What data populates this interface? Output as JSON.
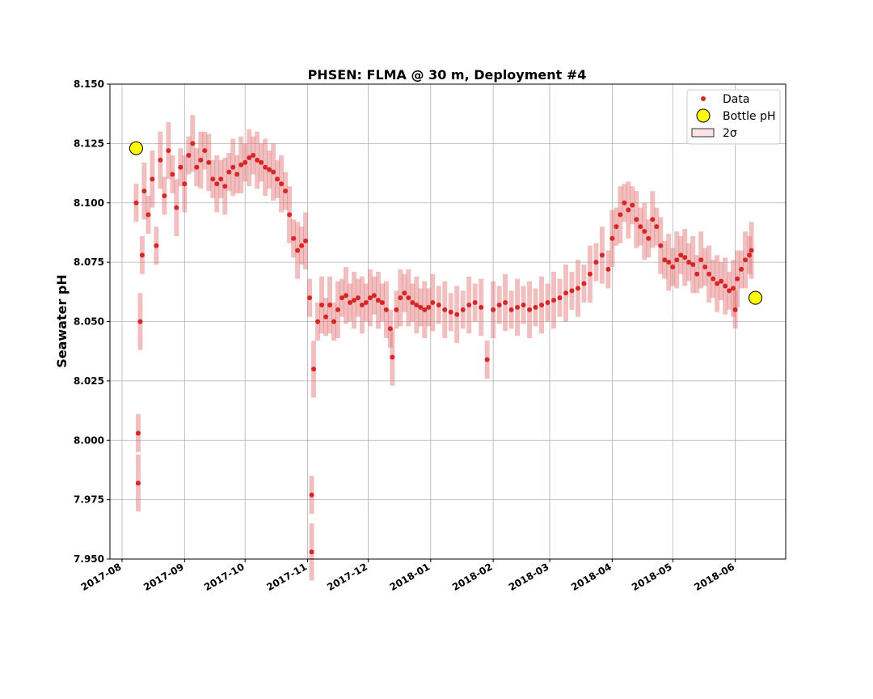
{
  "chart_data": {
    "type": "scatter",
    "title": "PHSEN: FLMA @ 30 m, Deployment #4",
    "xlabel": "",
    "ylabel": "Seawater pH",
    "xlim": [
      "2017-07-26",
      "2018-06-26"
    ],
    "ylim": [
      7.95,
      8.15
    ],
    "x_ticks": [
      "2017-08",
      "2017-09",
      "2017-10",
      "2017-11",
      "2017-12",
      "2018-01",
      "2018-02",
      "2018-03",
      "2018-04",
      "2018-05",
      "2018-06"
    ],
    "y_ticks": [
      "7.950",
      "7.975",
      "8.000",
      "8.025",
      "8.050",
      "8.075",
      "8.100",
      "8.125",
      "8.150"
    ],
    "grid": true,
    "legend_position": "top-right",
    "legend": [
      {
        "label": "Data",
        "marker": "dot",
        "color": "#d62728"
      },
      {
        "label": "Bottle pH",
        "marker": "circle",
        "color": "#ffff00"
      },
      {
        "label": "2σ",
        "marker": "patch",
        "color": "#fbe3e3"
      }
    ],
    "series": [
      {
        "name": "Data",
        "color": "#d62728",
        "band_color": "#e07070",
        "sigma2": [
          0.008,
          0.012
        ],
        "points": [
          [
            "2017-08-08",
            8.1
          ],
          [
            "2017-08-09",
            7.982
          ],
          [
            "2017-08-09",
            8.003
          ],
          [
            "2017-08-10",
            8.05
          ],
          [
            "2017-08-11",
            8.078
          ],
          [
            "2017-08-12",
            8.105
          ],
          [
            "2017-08-14",
            8.095
          ],
          [
            "2017-08-16",
            8.11
          ],
          [
            "2017-08-18",
            8.082
          ],
          [
            "2017-08-20",
            8.118
          ],
          [
            "2017-08-22",
            8.103
          ],
          [
            "2017-08-24",
            8.122
          ],
          [
            "2017-08-26",
            8.112
          ],
          [
            "2017-08-28",
            8.098
          ],
          [
            "2017-08-30",
            8.115
          ],
          [
            "2017-09-01",
            8.108
          ],
          [
            "2017-09-03",
            8.12
          ],
          [
            "2017-09-05",
            8.125
          ],
          [
            "2017-09-07",
            8.115
          ],
          [
            "2017-09-09",
            8.118
          ],
          [
            "2017-09-11",
            8.122
          ],
          [
            "2017-09-13",
            8.117
          ],
          [
            "2017-09-15",
            8.11
          ],
          [
            "2017-09-17",
            8.108
          ],
          [
            "2017-09-19",
            8.11
          ],
          [
            "2017-09-21",
            8.107
          ],
          [
            "2017-09-23",
            8.113
          ],
          [
            "2017-09-25",
            8.115
          ],
          [
            "2017-09-27",
            8.112
          ],
          [
            "2017-09-29",
            8.116
          ],
          [
            "2017-10-01",
            8.117
          ],
          [
            "2017-10-03",
            8.119
          ],
          [
            "2017-10-05",
            8.12
          ],
          [
            "2017-10-07",
            8.118
          ],
          [
            "2017-10-09",
            8.117
          ],
          [
            "2017-10-11",
            8.115
          ],
          [
            "2017-10-13",
            8.114
          ],
          [
            "2017-10-15",
            8.113
          ],
          [
            "2017-10-17",
            8.11
          ],
          [
            "2017-10-19",
            8.108
          ],
          [
            "2017-10-21",
            8.105
          ],
          [
            "2017-10-23",
            8.095
          ],
          [
            "2017-10-25",
            8.085
          ],
          [
            "2017-10-27",
            8.08
          ],
          [
            "2017-10-29",
            8.082
          ],
          [
            "2017-10-31",
            8.084
          ],
          [
            "2017-11-02",
            8.06
          ],
          [
            "2017-11-03",
            7.953
          ],
          [
            "2017-11-03",
            7.977
          ],
          [
            "2017-11-04",
            8.03
          ],
          [
            "2017-11-06",
            8.05
          ],
          [
            "2017-11-08",
            8.057
          ],
          [
            "2017-11-10",
            8.052
          ],
          [
            "2017-11-12",
            8.057
          ],
          [
            "2017-11-14",
            8.05
          ],
          [
            "2017-11-16",
            8.055
          ],
          [
            "2017-11-18",
            8.06
          ],
          [
            "2017-11-20",
            8.061
          ],
          [
            "2017-11-22",
            8.058
          ],
          [
            "2017-11-24",
            8.059
          ],
          [
            "2017-11-26",
            8.06
          ],
          [
            "2017-11-28",
            8.057
          ],
          [
            "2017-11-30",
            8.058
          ],
          [
            "2017-12-02",
            8.06
          ],
          [
            "2017-12-04",
            8.061
          ],
          [
            "2017-12-06",
            8.059
          ],
          [
            "2017-12-08",
            8.058
          ],
          [
            "2017-12-10",
            8.055
          ],
          [
            "2017-12-12",
            8.047
          ],
          [
            "2017-12-13",
            8.035
          ],
          [
            "2017-12-15",
            8.055
          ],
          [
            "2017-12-17",
            8.06
          ],
          [
            "2017-12-19",
            8.062
          ],
          [
            "2017-12-21",
            8.06
          ],
          [
            "2017-12-23",
            8.058
          ],
          [
            "2017-12-25",
            8.057
          ],
          [
            "2017-12-27",
            8.056
          ],
          [
            "2017-12-29",
            8.055
          ],
          [
            "2017-12-31",
            8.056
          ],
          [
            "2018-01-02",
            8.058
          ],
          [
            "2018-01-05",
            8.057
          ],
          [
            "2018-01-08",
            8.055
          ],
          [
            "2018-01-11",
            8.054
          ],
          [
            "2018-01-14",
            8.053
          ],
          [
            "2018-01-17",
            8.055
          ],
          [
            "2018-01-20",
            8.057
          ],
          [
            "2018-01-23",
            8.058
          ],
          [
            "2018-01-26",
            8.056
          ],
          [
            "2018-01-29",
            8.034
          ],
          [
            "2018-02-01",
            8.055
          ],
          [
            "2018-02-04",
            8.057
          ],
          [
            "2018-02-07",
            8.058
          ],
          [
            "2018-02-10",
            8.055
          ],
          [
            "2018-02-13",
            8.056
          ],
          [
            "2018-02-16",
            8.057
          ],
          [
            "2018-02-19",
            8.055
          ],
          [
            "2018-02-22",
            8.056
          ],
          [
            "2018-02-25",
            8.057
          ],
          [
            "2018-02-28",
            8.058
          ],
          [
            "2018-03-03",
            8.059
          ],
          [
            "2018-03-06",
            8.06
          ],
          [
            "2018-03-09",
            8.062
          ],
          [
            "2018-03-12",
            8.063
          ],
          [
            "2018-03-15",
            8.064
          ],
          [
            "2018-03-18",
            8.066
          ],
          [
            "2018-03-21",
            8.07
          ],
          [
            "2018-03-24",
            8.075
          ],
          [
            "2018-03-27",
            8.078
          ],
          [
            "2018-03-30",
            8.072
          ],
          [
            "2018-04-01",
            8.085
          ],
          [
            "2018-04-03",
            8.09
          ],
          [
            "2018-04-05",
            8.095
          ],
          [
            "2018-04-07",
            8.1
          ],
          [
            "2018-04-09",
            8.097
          ],
          [
            "2018-04-11",
            8.099
          ],
          [
            "2018-04-13",
            8.093
          ],
          [
            "2018-04-15",
            8.09
          ],
          [
            "2018-04-17",
            8.088
          ],
          [
            "2018-04-19",
            8.085
          ],
          [
            "2018-04-21",
            8.093
          ],
          [
            "2018-04-23",
            8.09
          ],
          [
            "2018-04-25",
            8.082
          ],
          [
            "2018-04-27",
            8.076
          ],
          [
            "2018-04-29",
            8.075
          ],
          [
            "2018-05-01",
            8.073
          ],
          [
            "2018-05-03",
            8.076
          ],
          [
            "2018-05-05",
            8.078
          ],
          [
            "2018-05-07",
            8.077
          ],
          [
            "2018-05-09",
            8.075
          ],
          [
            "2018-05-11",
            8.074
          ],
          [
            "2018-05-13",
            8.07
          ],
          [
            "2018-05-15",
            8.076
          ],
          [
            "2018-05-17",
            8.073
          ],
          [
            "2018-05-19",
            8.07
          ],
          [
            "2018-05-21",
            8.068
          ],
          [
            "2018-05-23",
            8.066
          ],
          [
            "2018-05-25",
            8.067
          ],
          [
            "2018-05-27",
            8.065
          ],
          [
            "2018-05-29",
            8.063
          ],
          [
            "2018-05-31",
            8.064
          ],
          [
            "2018-06-01",
            8.055
          ],
          [
            "2018-06-02",
            8.068
          ],
          [
            "2018-06-04",
            8.072
          ],
          [
            "2018-06-06",
            8.076
          ],
          [
            "2018-06-08",
            8.078
          ],
          [
            "2018-06-09",
            8.08
          ]
        ]
      },
      {
        "name": "Bottle pH",
        "color": "#ffff00",
        "points": [
          [
            "2017-08-08",
            8.123
          ],
          [
            "2018-06-11",
            8.06
          ]
        ]
      }
    ]
  }
}
